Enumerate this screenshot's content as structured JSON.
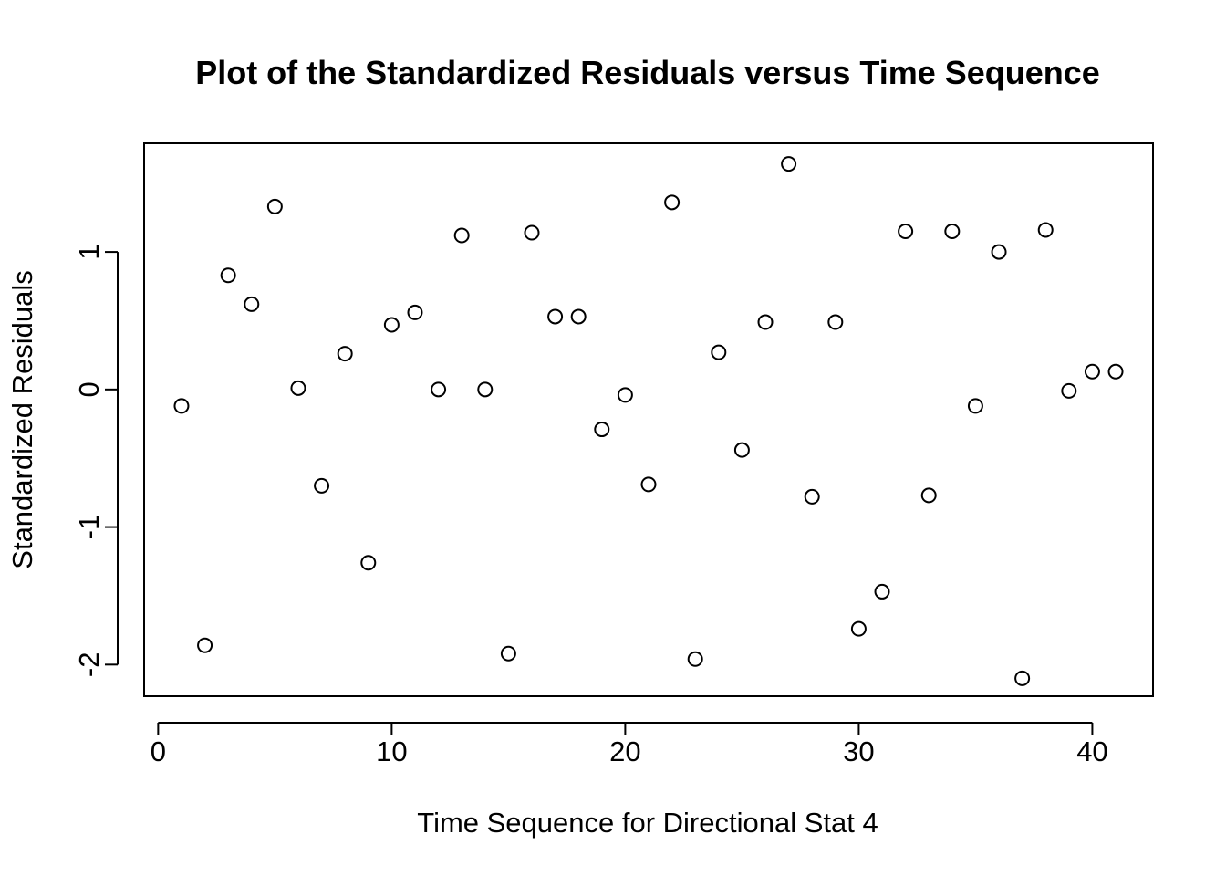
{
  "chart_data": {
    "type": "scatter",
    "title": "Plot of the Standardized Residuals versus Time Sequence",
    "xlabel": "Time Sequence for Directional Stat 4",
    "ylabel": "Standardized Residuals",
    "xlim": [
      -0.6,
      42.6
    ],
    "ylim": [
      -2.23,
      1.79
    ],
    "xticks": [
      0,
      10,
      20,
      30,
      40
    ],
    "xtick_labels": [
      "0",
      "10",
      "20",
      "30",
      "40"
    ],
    "yticks": [
      -2,
      -1,
      0,
      1
    ],
    "ytick_labels": [
      "-2",
      "-1",
      "0",
      "1"
    ],
    "grid": false,
    "legend": "none",
    "marker": "open-circle",
    "points": [
      {
        "x": 1,
        "y": -0.12
      },
      {
        "x": 2,
        "y": -1.86
      },
      {
        "x": 3,
        "y": 0.83
      },
      {
        "x": 4,
        "y": 0.62
      },
      {
        "x": 5,
        "y": 1.33
      },
      {
        "x": 6,
        "y": 0.01
      },
      {
        "x": 7,
        "y": -0.7
      },
      {
        "x": 8,
        "y": 0.26
      },
      {
        "x": 9,
        "y": -1.26
      },
      {
        "x": 10,
        "y": 0.47
      },
      {
        "x": 11,
        "y": 0.56
      },
      {
        "x": 12,
        "y": 0.0
      },
      {
        "x": 13,
        "y": 1.12
      },
      {
        "x": 14,
        "y": 0.0
      },
      {
        "x": 15,
        "y": -1.92
      },
      {
        "x": 16,
        "y": 1.14
      },
      {
        "x": 17,
        "y": 0.53
      },
      {
        "x": 18,
        "y": 0.53
      },
      {
        "x": 19,
        "y": -0.29
      },
      {
        "x": 20,
        "y": -0.04
      },
      {
        "x": 21,
        "y": -0.69
      },
      {
        "x": 22,
        "y": 1.36
      },
      {
        "x": 23,
        "y": -1.96
      },
      {
        "x": 24,
        "y": 0.27
      },
      {
        "x": 25,
        "y": -0.44
      },
      {
        "x": 26,
        "y": 0.49
      },
      {
        "x": 27,
        "y": 1.64
      },
      {
        "x": 28,
        "y": -0.78
      },
      {
        "x": 29,
        "y": 0.49
      },
      {
        "x": 30,
        "y": -1.74
      },
      {
        "x": 31,
        "y": -1.47
      },
      {
        "x": 32,
        "y": 1.15
      },
      {
        "x": 33,
        "y": -0.77
      },
      {
        "x": 34,
        "y": 1.15
      },
      {
        "x": 35,
        "y": -0.12
      },
      {
        "x": 36,
        "y": 1.0
      },
      {
        "x": 37,
        "y": -2.1
      },
      {
        "x": 38,
        "y": 1.16
      },
      {
        "x": 39,
        "y": -0.01
      },
      {
        "x": 40,
        "y": 0.13
      },
      {
        "x": 41,
        "y": 0.13
      }
    ]
  }
}
